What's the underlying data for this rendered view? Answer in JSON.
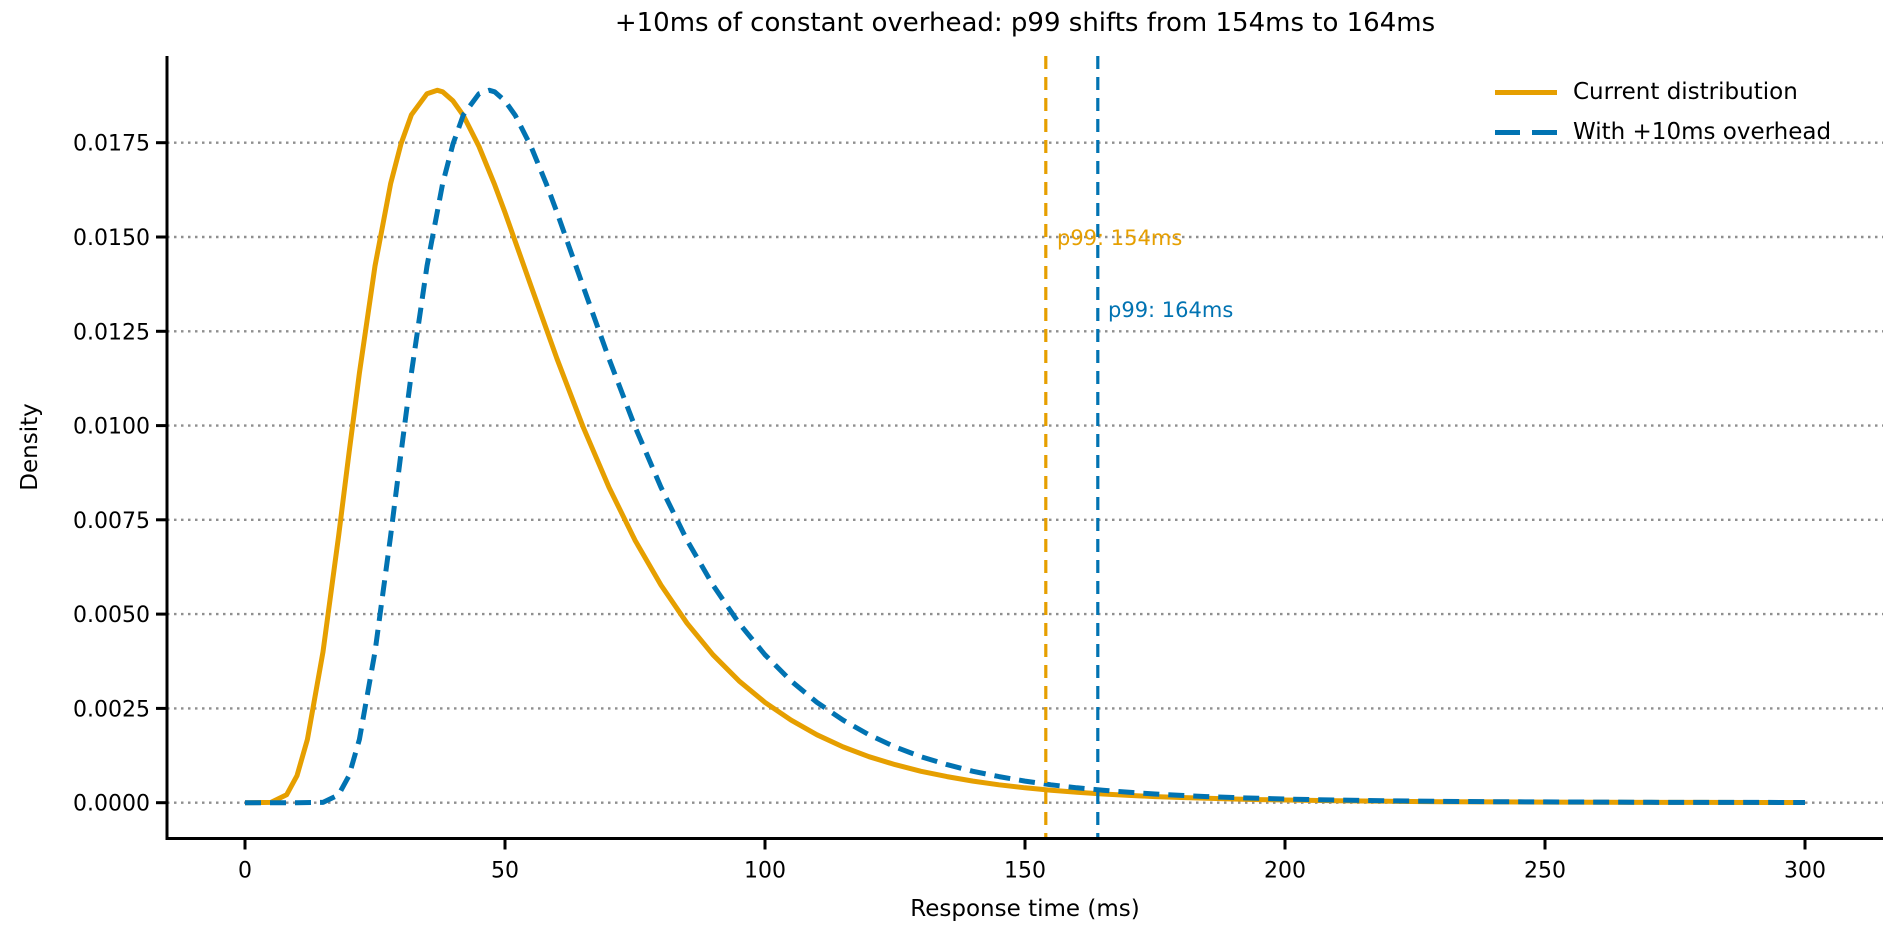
{
  "figure": {
    "background": "#ffffff",
    "text_color": "#000000"
  },
  "chart_data": {
    "type": "line",
    "title": "+10ms of constant overhead: p99 shifts from 154ms to 164ms",
    "xlabel": "Response time (ms)",
    "ylabel": "Density",
    "xlim": [
      -15,
      315
    ],
    "ylim": [
      -0.00095,
      0.0198
    ],
    "xticks": [
      0,
      50,
      100,
      150,
      200,
      250,
      300
    ],
    "yticks": [
      0,
      0.0025,
      0.005,
      0.0075,
      0.01,
      0.0125,
      0.015,
      0.0175
    ],
    "ytick_labels": [
      "0.0000",
      "0.0025",
      "0.0050",
      "0.0075",
      "0.0100",
      "0.0125",
      "0.0150",
      "0.0175"
    ],
    "grid": {
      "axis": "y",
      "style": "dotted",
      "color": "#8f8f8f"
    },
    "legend": {
      "location": "upper right",
      "frameon": false
    },
    "series": [
      {
        "name": "Current distribution",
        "color": "#E69F00",
        "style": "solid",
        "peak": {
          "x": 37,
          "y": 0.0189
        },
        "p99": 154,
        "x": [
          0,
          5,
          8,
          10,
          12,
          15,
          18,
          20,
          22,
          25,
          28,
          30,
          32,
          35,
          37,
          38,
          40,
          42,
          45,
          48,
          50,
          55,
          60,
          65,
          70,
          75,
          80,
          85,
          90,
          95,
          100,
          105,
          110,
          115,
          120,
          125,
          130,
          135,
          140,
          145,
          150,
          155,
          160,
          165,
          170,
          175,
          180,
          185,
          190,
          195,
          200,
          210,
          220,
          230,
          240,
          250,
          260,
          270,
          280,
          290,
          300
        ],
        "y": [
          0,
          8e-06,
          0.000208,
          0.000714,
          0.001677,
          0.004,
          0.00707,
          0.00927,
          0.01139,
          0.01423,
          0.01641,
          0.01747,
          0.01824,
          0.0188,
          0.01889,
          0.01885,
          0.01861,
          0.01822,
          0.0174,
          0.01639,
          0.01565,
          0.0137,
          0.01177,
          0.00997,
          0.00836,
          0.00696,
          0.00577,
          0.00476,
          0.00392,
          0.00323,
          0.00266,
          0.00219,
          0.0018,
          0.00148,
          0.00122,
          0.00101,
          0.000832,
          0.000691,
          0.000572,
          0.000475,
          0.000395,
          0.000331,
          0.000276,
          0.000231,
          0.000193,
          0.000162,
          0.000136,
          0.000115,
          9.71e-05,
          8.21e-05,
          6.97e-05,
          5.02e-05,
          3.63e-05,
          2.66e-05,
          1.95e-05,
          1.45e-05,
          1.07e-05,
          8.1e-06,
          6e-06,
          4.6e-06,
          3.5e-06
        ]
      },
      {
        "name": "With +10ms overhead",
        "color": "#0173B2",
        "style": "dashed",
        "peak": {
          "x": 47,
          "y": 0.0189
        },
        "p99": 164,
        "x": [
          0,
          5,
          10,
          15,
          18,
          20,
          22,
          25,
          28,
          30,
          32,
          35,
          38,
          40,
          42,
          45,
          47,
          48,
          50,
          52,
          55,
          58,
          60,
          65,
          70,
          75,
          80,
          85,
          90,
          95,
          100,
          105,
          110,
          115,
          120,
          125,
          130,
          135,
          140,
          145,
          150,
          155,
          160,
          165,
          170,
          175,
          180,
          185,
          190,
          195,
          200,
          205,
          210,
          220,
          230,
          240,
          250,
          260,
          270,
          280,
          290,
          300
        ],
        "y": [
          0,
          0,
          0,
          8e-06,
          0.000208,
          0.000714,
          0.001677,
          0.004,
          0.00707,
          0.00927,
          0.01139,
          0.01423,
          0.01641,
          0.01747,
          0.01824,
          0.0188,
          0.01889,
          0.01885,
          0.01861,
          0.01822,
          0.0174,
          0.01639,
          0.01565,
          0.0137,
          0.01177,
          0.00997,
          0.00836,
          0.00696,
          0.00577,
          0.00476,
          0.00392,
          0.00323,
          0.00266,
          0.00219,
          0.0018,
          0.00148,
          0.00122,
          0.00101,
          0.000832,
          0.000691,
          0.000572,
          0.000475,
          0.000395,
          0.000331,
          0.000276,
          0.000231,
          0.000193,
          0.000162,
          0.000136,
          0.000115,
          9.71e-05,
          8.21e-05,
          6.97e-05,
          5.02e-05,
          3.63e-05,
          2.66e-05,
          1.95e-05,
          1.45e-05,
          1.07e-05,
          8.1e-06,
          6e-06,
          4.6e-06
        ]
      }
    ],
    "vlines": [
      {
        "x": 154,
        "color": "#E69F00",
        "style": "dashed",
        "label": "p99: 154ms",
        "label_y": 0.015
      },
      {
        "x": 164,
        "color": "#0173B2",
        "style": "dashed",
        "label": "p99: 164ms",
        "label_y": 0.0131
      }
    ]
  }
}
